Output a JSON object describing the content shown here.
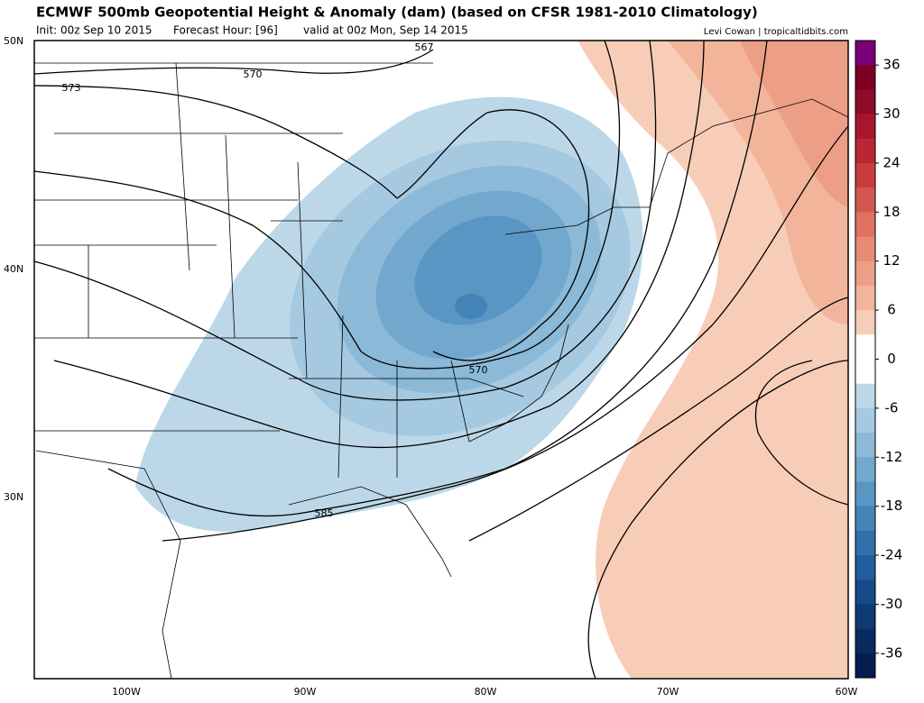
{
  "header": {
    "title": "ECMWF 500mb Geopotential Height & Anomaly (dam) (based on CFSR 1981-2010 Climatology)",
    "init": "Init: 00z Sep 10 2015",
    "forecast_hour": "Forecast Hour: [96]",
    "valid": "valid at 00z Mon, Sep 14 2015",
    "credit": "Levi Cowan | tropicaltidbits.com"
  },
  "map": {
    "lat_labels": [
      "50N",
      "40N",
      "30N"
    ],
    "lon_labels": [
      "100W",
      "90W",
      "80W",
      "70W",
      "60W"
    ],
    "contour_labels": [
      "567",
      "570",
      "573",
      "570",
      "585"
    ]
  },
  "colorbar": {
    "ticks": [
      36,
      30,
      24,
      18,
      12,
      6,
      0,
      -6,
      -12,
      -18,
      -24,
      -30,
      -36
    ],
    "colors": [
      "#7a007a",
      "#7d0022",
      "#8f0b28",
      "#a8162e",
      "#bb2634",
      "#c93c3e",
      "#d5574f",
      "#df7260",
      "#e68a73",
      "#ec9f86",
      "#f2b59c",
      "#f8cdb8",
      "#ffffff",
      "#ffffff",
      "#bcd8e8",
      "#a4c9e0",
      "#8bb9d7",
      "#72a8cd",
      "#5a96c3",
      "#4483b8",
      "#3170aa",
      "#225c9a",
      "#174a88",
      "#103a74",
      "#0a2b60",
      "#061d4f"
    ]
  }
}
